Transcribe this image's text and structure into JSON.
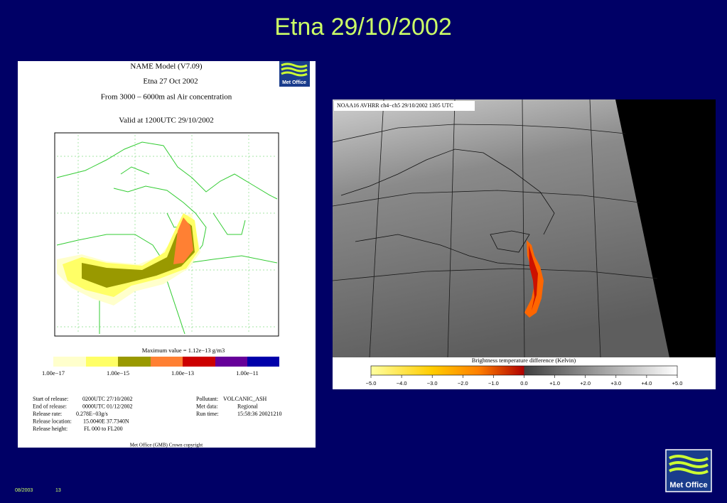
{
  "title": "Etna 29/10/2002",
  "model_panel": {
    "header": [
      "NAME Model (V7.09)",
      "Etna 27 Oct 2002",
      "From  3000 –  6000m asl Air concentration",
      "Valid at 1200UTC 29/10/2002"
    ],
    "max_value": "Maximum value = 1.12e−13 g/m3",
    "scale_labels": [
      "1.00e−17",
      "1.00e−15",
      "1.00e−13",
      "1.00e−11"
    ],
    "release_info": [
      {
        "label": "Start of release:",
        "value": "0200UTC 27/10/2002"
      },
      {
        "label": "End of release:",
        "value": "0000UTC 01/12/2002"
      },
      {
        "label": "Release rate:",
        "value": "0.278E−03g/s"
      },
      {
        "label": "Release location:",
        "value": "15.0040E 37.7340N"
      },
      {
        "label": "Release height:",
        "value": "FL  000 to FL200"
      }
    ],
    "run_info": [
      {
        "label": "Pollutant:",
        "value": "VOLCANIC_ASH"
      },
      {
        "label": "Met data:",
        "value": "Regional"
      },
      {
        "label": "Run time:",
        "value": "15:58:36  20021210"
      }
    ],
    "copyright": "Met Office (GMB)  Crown copyright",
    "logo": "Met Office"
  },
  "satellite_panel": {
    "caption": "NOAA16 AVHRR ch4−ch5 29/10/2002 1305 UTC",
    "scale_title": "Brightness temperature difference (Kelvin)",
    "scale_labels": [
      "−5.0",
      "−4.0",
      "−3.0",
      "−2.0",
      "−1.0",
      "0.0",
      "+1.0",
      "+2.0",
      "+3.0",
      "+4.0",
      "+5.0"
    ]
  },
  "footer": {
    "date": "08/2003",
    "page": "13",
    "logo": "Met Office"
  }
}
